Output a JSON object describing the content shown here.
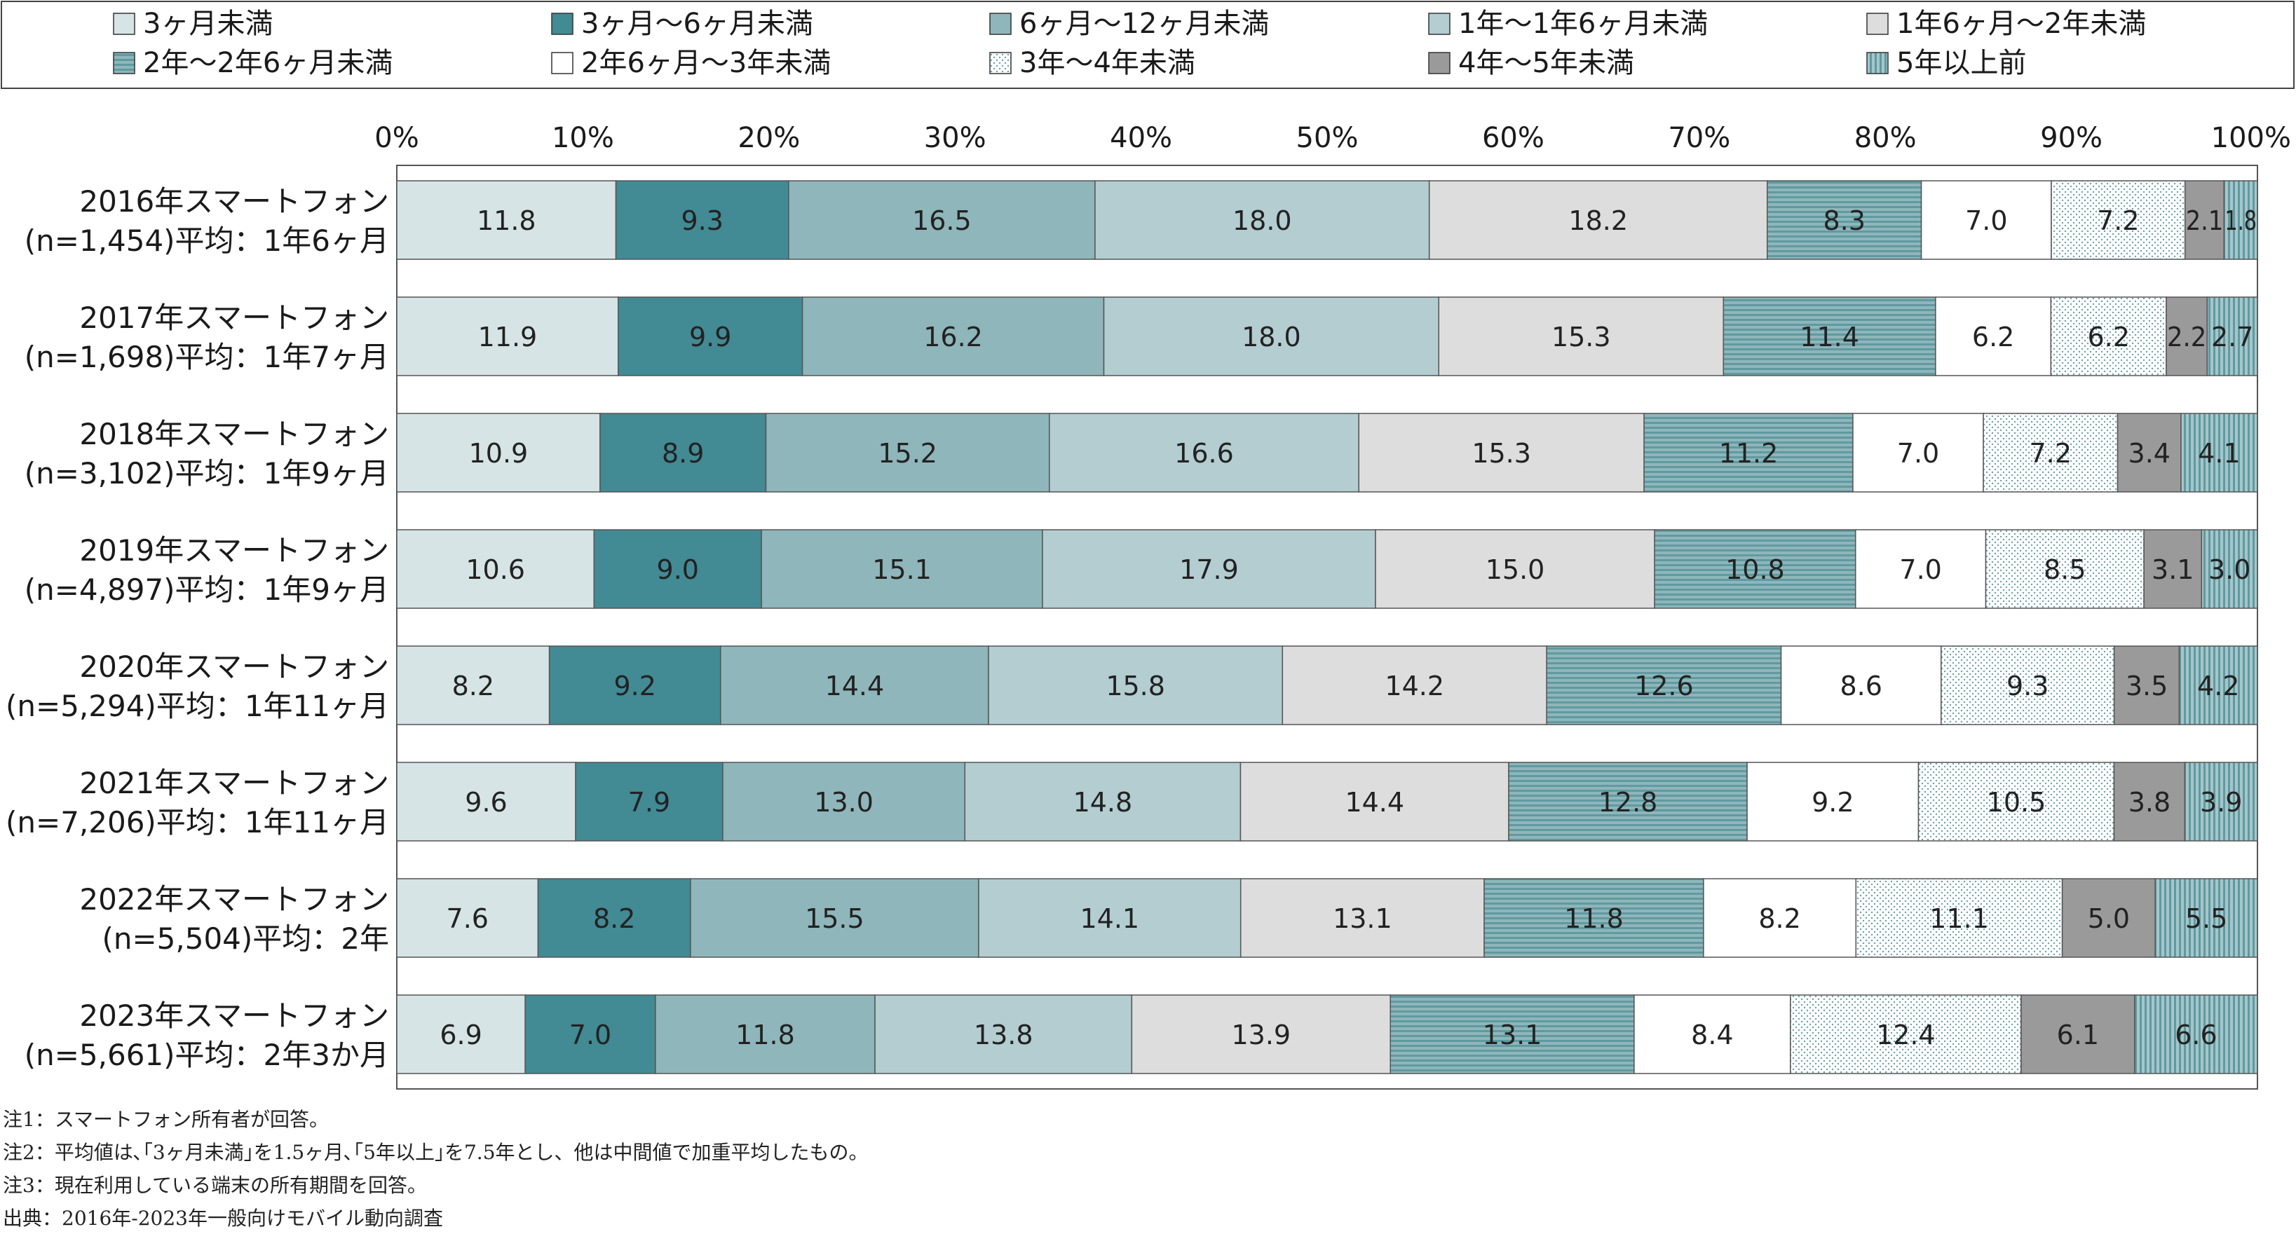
{
  "chart_data": {
    "type": "bar",
    "orientation": "horizontal",
    "stacked": true,
    "percent": true,
    "x_tick_labels": [
      "0%",
      "10%",
      "20%",
      "30%",
      "40%",
      "50%",
      "60%",
      "70%",
      "80%",
      "90%",
      "100%"
    ],
    "xlim": [
      0,
      100
    ],
    "grid": false,
    "legend_position": "top",
    "categories": [
      {
        "label": "2016年スマートフォン",
        "label2": "(n=1,454)平均：1年6ヶ月"
      },
      {
        "label": "2017年スマートフォン",
        "label2": "(n=1,698)平均：1年7ヶ月"
      },
      {
        "label": "2018年スマートフォン",
        "label2": "(n=3,102)平均：1年9ヶ月"
      },
      {
        "label": "2019年スマートフォン",
        "label2": "(n=4,897)平均：1年9ヶ月"
      },
      {
        "label": "2020年スマートフォン",
        "label2": "(n=5,294)平均：1年11ヶ月"
      },
      {
        "label": "2021年スマートフォン",
        "label2": "(n=7,206)平均：1年11ヶ月"
      },
      {
        "label": "2022年スマートフォン",
        "label2": "(n=5,504)平均：2年"
      },
      {
        "label": "2023年スマートフォン",
        "label2": "(n=5,661)平均：2年3か月"
      }
    ],
    "series": [
      {
        "name": "3ヶ月未満",
        "color": "#d6e4e5",
        "pattern": "none",
        "values": [
          11.8,
          11.9,
          10.9,
          10.6,
          8.2,
          9.6,
          7.6,
          6.9
        ]
      },
      {
        "name": "3ヶ月～6ヶ月未満",
        "color": "#428a94",
        "pattern": "none",
        "values": [
          9.3,
          9.9,
          8.9,
          9.0,
          9.2,
          7.9,
          8.2,
          7.0
        ]
      },
      {
        "name": "6ヶ月～12ヶ月未満",
        "color": "#8fb6ba",
        "pattern": "none",
        "values": [
          16.5,
          16.2,
          15.2,
          15.1,
          14.4,
          13.0,
          15.5,
          11.8
        ]
      },
      {
        "name": "1年～1年6ヶ月未満",
        "color": "#b3cdd1",
        "pattern": "none",
        "values": [
          18.0,
          18.0,
          16.6,
          17.9,
          15.8,
          14.8,
          14.1,
          13.8
        ]
      },
      {
        "name": "1年6ヶ月～2年未満",
        "color": "#dddddd",
        "pattern": "none",
        "values": [
          18.2,
          15.3,
          15.3,
          15.0,
          14.2,
          14.4,
          13.1,
          13.9
        ]
      },
      {
        "name": "2年～2年6ヶ月未満",
        "color": "#8fb6ba",
        "pattern": "hstripe",
        "values": [
          8.3,
          11.4,
          11.2,
          10.8,
          12.6,
          12.8,
          11.8,
          13.1
        ]
      },
      {
        "name": "2年6ヶ月～3年未満",
        "color": "#ffffff",
        "pattern": "none",
        "values": [
          7.0,
          6.2,
          7.0,
          7.0,
          8.6,
          9.2,
          8.2,
          8.4
        ]
      },
      {
        "name": "3年～4年未満",
        "color": "#ffffff",
        "pattern": "dots",
        "values": [
          7.2,
          6.2,
          7.2,
          8.5,
          9.3,
          10.5,
          11.1,
          12.4
        ]
      },
      {
        "name": "4年～5年未満",
        "color": "#9a9a9a",
        "pattern": "none",
        "values": [
          2.1,
          2.2,
          3.4,
          3.1,
          3.5,
          3.8,
          5.0,
          6.1
        ]
      },
      {
        "name": "5年以上前",
        "color": "#8fb6ba",
        "pattern": "vstripe",
        "values": [
          1.8,
          2.7,
          4.1,
          3.0,
          4.2,
          3.9,
          5.5,
          6.6
        ]
      }
    ]
  },
  "notes": [
    "注1：スマートフォン所有者が回答。",
    "注2：平均値は､｢3ヶ月未満｣を1.5ヶ月､｢5年以上｣を7.5年とし、他は中間値で加重平均したもの。",
    "注3：現在利用している端末の所有期間を回答。",
    "出典：2016年-2023年一般向けモバイル動向調査"
  ]
}
